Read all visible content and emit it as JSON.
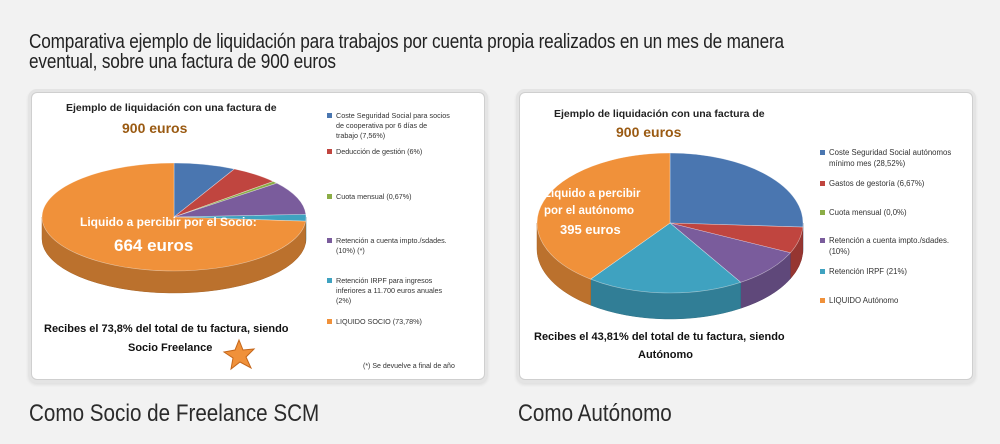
{
  "page": {
    "title": "Comparativa ejemplo de liquidación para trabajos por cuenta propia realizados en un mes de manera eventual, sobre una factura de 900 euros"
  },
  "colors": {
    "blue": "#4a76b0",
    "red": "#c0453f",
    "green": "#8bad46",
    "purple": "#7a5c9c",
    "teal": "#3fa2c0",
    "orange": "#f0913a",
    "amount": "#9a5a12"
  },
  "chart_data": [
    {
      "type": "pie",
      "header_line1": "Ejemplo de liquidación con una factura de",
      "header_line2": "900 euros",
      "slice_label_line1": "Liquido a percibir por el Socio:",
      "slice_label_line2": "664 euros",
      "bottom_line1": "Recibes el 73,8% del total de tu factura, siendo",
      "bottom_line2": "Socio Freelance",
      "footnote": "(*) Se devuelve a final de año",
      "categories": [
        [
          "Coste Seguridad Social para socios",
          "de cooperativa por 6 días de",
          "trabajo (7,56%)"
        ],
        [
          "Deducción de gestión (6%)"
        ],
        [
          "Cuota mensual  (0,67%)"
        ],
        [
          "Retención a cuenta impto./sdades.",
          "(10%) (*)"
        ],
        [
          "Retención IRPF para ingresos",
          "inferiores a 11.700 euros anuales",
          "(2%)"
        ],
        [
          "LIQUIDO SOCIO (73,78%)"
        ]
      ],
      "values": [
        7.56,
        6,
        0.67,
        10,
        2,
        73.78
      ],
      "series_colors": [
        "#4a76b0",
        "#c0453f",
        "#8bad46",
        "#7a5c9c",
        "#3fa2c0",
        "#f0913a"
      ]
    },
    {
      "type": "pie",
      "header_line1": "Ejemplo de liquidación con una factura de",
      "header_line2": "900 euros",
      "slice_label_line1": "Liquido a percibir",
      "slice_label_line2": "por el autónomo",
      "slice_label_line3": "395 euros",
      "bottom_line1": "Recibes el 43,81% del total de tu factura, siendo",
      "bottom_line2": "Autónomo",
      "categories": [
        [
          "Coste Seguridad Social autónomos",
          "mínimo mes (28,52%)"
        ],
        [
          "Gastos de gestoría (6,67%)"
        ],
        [
          "Cuota mensual (0,0%)"
        ],
        [
          "Retención a cuenta impto./sdades.",
          "(10%)"
        ],
        [
          "Retención IRPF (21%)"
        ],
        [
          "LIQUIDO Autónomo"
        ]
      ],
      "values": [
        28.52,
        6.67,
        0,
        10,
        21,
        43.81
      ],
      "series_colors": [
        "#4a76b0",
        "#c0453f",
        "#8bad46",
        "#7a5c9c",
        "#3fa2c0",
        "#f0913a"
      ]
    }
  ],
  "captions": {
    "left": "Como Socio de Freelance SCM",
    "right": "Como Autónomo"
  }
}
